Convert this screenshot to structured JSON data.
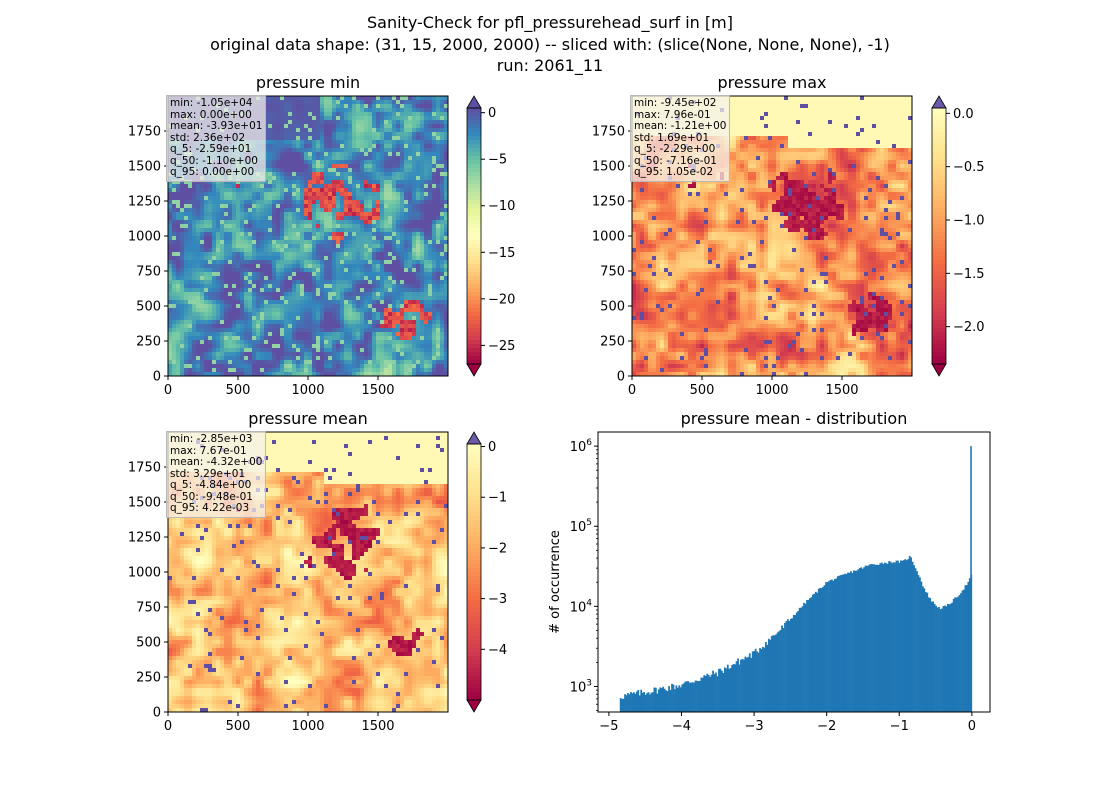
{
  "figure": {
    "title_lines": [
      "Sanity-Check for pfl_pressurehead_surf in [m]",
      "original data shape: (31, 15, 2000, 2000) -- sliced with: (slice(None, None, None), -1)",
      "run: 2061_11"
    ]
  },
  "colors": {
    "spectral": [
      "#9e0142",
      "#d53e4f",
      "#f46d43",
      "#fdae61",
      "#fee08b",
      "#ffffbf",
      "#e6f598",
      "#abdda4",
      "#66c2a5",
      "#3288bd",
      "#5e4fa2"
    ],
    "histogram": "#1f77b4"
  },
  "chart_data": [
    {
      "type": "heatmap",
      "title": "pressure min",
      "x_ticks": [
        0,
        500,
        1000,
        1500
      ],
      "y_ticks": [
        0,
        250,
        500,
        750,
        1000,
        1250,
        1500,
        1750
      ],
      "xlim": [
        0,
        2000
      ],
      "ylim": [
        0,
        2000
      ],
      "colorbar": {
        "range": [
          -27,
          0.5
        ],
        "ticks": [
          0,
          -5,
          -10,
          -15,
          -20,
          -25
        ],
        "extend": "both",
        "cmap": "Spectral"
      },
      "stats": [
        "min: -1.05e+04",
        "max: 0.00e+00",
        "mean: -3.93e+01",
        "std: 2.36e+02",
        "q_5: -2.59e+01",
        "q_50: -1.10e+00",
        "q_95: 0.00e+00"
      ]
    },
    {
      "type": "heatmap",
      "title": "pressure max",
      "x_ticks": [
        0,
        500,
        1000,
        1500
      ],
      "y_ticks": [
        0,
        250,
        500,
        750,
        1000,
        1250,
        1500,
        1750
      ],
      "xlim": [
        0,
        2000
      ],
      "ylim": [
        0,
        2000
      ],
      "colorbar": {
        "range": [
          -2.35,
          0.05
        ],
        "ticks": [
          "0.0",
          "-0.5",
          "-1.0",
          "-1.5",
          "-2.0"
        ],
        "extend": "both",
        "cmap": "Spectral (lower half)"
      },
      "stats": [
        "min: -9.45e+02",
        "max: 7.96e-01",
        "mean: -1.21e+00",
        "std: 1.69e+01",
        "q_5: -2.29e+00",
        "q_50: -7.16e-01",
        "q_95: 1.05e-02"
      ]
    },
    {
      "type": "heatmap",
      "title": "pressure mean",
      "x_ticks": [
        0,
        500,
        1000,
        1500
      ],
      "y_ticks": [
        0,
        250,
        500,
        750,
        1000,
        1250,
        1500,
        1750
      ],
      "xlim": [
        0,
        2000
      ],
      "ylim": [
        0,
        2000
      ],
      "colorbar": {
        "range": [
          -5.0,
          0.05
        ],
        "ticks": [
          0,
          -1,
          -2,
          -3,
          -4
        ],
        "extend": "both",
        "cmap": "Spectral (lower half)"
      },
      "stats": [
        "min: -2.85e+03",
        "max: 7.67e-01",
        "mean: -4.32e+00",
        "std: 3.29e+01",
        "q_5: -4.84e+00",
        "q_50: -9.48e-01",
        "q_95: 4.22e-03"
      ]
    },
    {
      "type": "bar",
      "title": "pressure mean - distribution",
      "ylabel": "# of occurrence",
      "xlabel": "",
      "x_ticks": [
        -5,
        -4,
        -3,
        -2,
        -1,
        0
      ],
      "xlim": [
        -5.15,
        0.25
      ],
      "yscale": "log",
      "ylim": [
        480,
        1500000
      ],
      "y_tick_labels": [
        {
          "mantissa": "10",
          "exp": "3",
          "value": 1000
        },
        {
          "mantissa": "10",
          "exp": "4",
          "value": 10000
        },
        {
          "mantissa": "10",
          "exp": "5",
          "value": 100000
        },
        {
          "mantissa": "10",
          "exp": "6",
          "value": 1000000
        }
      ],
      "histogram": {
        "bin_range": [
          -4.85,
          0
        ],
        "profile": [
          [
            -4.85,
            750
          ],
          [
            -4.5,
            850
          ],
          [
            -4.0,
            1050
          ],
          [
            -3.5,
            1500
          ],
          [
            -3.0,
            2600
          ],
          [
            -2.6,
            5500
          ],
          [
            -2.3,
            11000
          ],
          [
            -2.0,
            20000
          ],
          [
            -1.7,
            26000
          ],
          [
            -1.4,
            33000
          ],
          [
            -1.1,
            36000
          ],
          [
            -0.95,
            36000
          ],
          [
            -0.85,
            42000
          ],
          [
            -0.75,
            27000
          ],
          [
            -0.65,
            16000
          ],
          [
            -0.55,
            11500
          ],
          [
            -0.45,
            9500
          ],
          [
            -0.35,
            10000
          ],
          [
            -0.25,
            12000
          ],
          [
            -0.15,
            15000
          ],
          [
            -0.05,
            20000
          ],
          [
            -0.01,
            24000
          ]
        ],
        "spike": {
          "x": 0,
          "value": 1000000
        }
      }
    }
  ]
}
